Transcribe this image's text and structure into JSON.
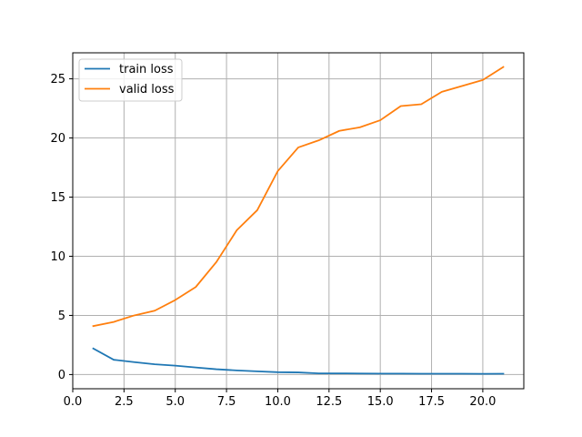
{
  "chart_data": {
    "type": "line",
    "title": "",
    "xlabel": "",
    "ylabel": "",
    "xlim": [
      0,
      22
    ],
    "ylim": [
      -1.2,
      27.2
    ],
    "grid": true,
    "legend_position": "top-left",
    "x_ticks": [
      0.0,
      2.5,
      5.0,
      7.5,
      10.0,
      12.5,
      15.0,
      17.5,
      20.0
    ],
    "x_tick_labels": [
      "0.0",
      "2.5",
      "5.0",
      "7.5",
      "10.0",
      "12.5",
      "15.0",
      "17.5",
      "20.0"
    ],
    "y_ticks": [
      0,
      5,
      10,
      15,
      20,
      25
    ],
    "y_tick_labels": [
      "0",
      "5",
      "10",
      "15",
      "20",
      "25"
    ],
    "x": [
      1,
      2,
      3,
      4,
      5,
      6,
      7,
      8,
      9,
      10,
      11,
      12,
      13,
      14,
      15,
      16,
      17,
      18,
      19,
      20,
      21
    ],
    "series": [
      {
        "name": "train loss",
        "color": "#1f77b4",
        "values": [
          2.2,
          1.25,
          1.05,
          0.87,
          0.75,
          0.6,
          0.45,
          0.35,
          0.27,
          0.2,
          0.18,
          0.1,
          0.1,
          0.09,
          0.08,
          0.08,
          0.07,
          0.07,
          0.07,
          0.06,
          0.07
        ]
      },
      {
        "name": "valid loss",
        "color": "#ff7f0e",
        "values": [
          4.1,
          4.45,
          5.0,
          5.4,
          6.3,
          7.4,
          9.5,
          12.2,
          13.9,
          17.2,
          19.2,
          19.8,
          20.6,
          20.9,
          21.5,
          22.7,
          22.85,
          23.9,
          24.4,
          24.9,
          26.0
        ]
      }
    ]
  }
}
